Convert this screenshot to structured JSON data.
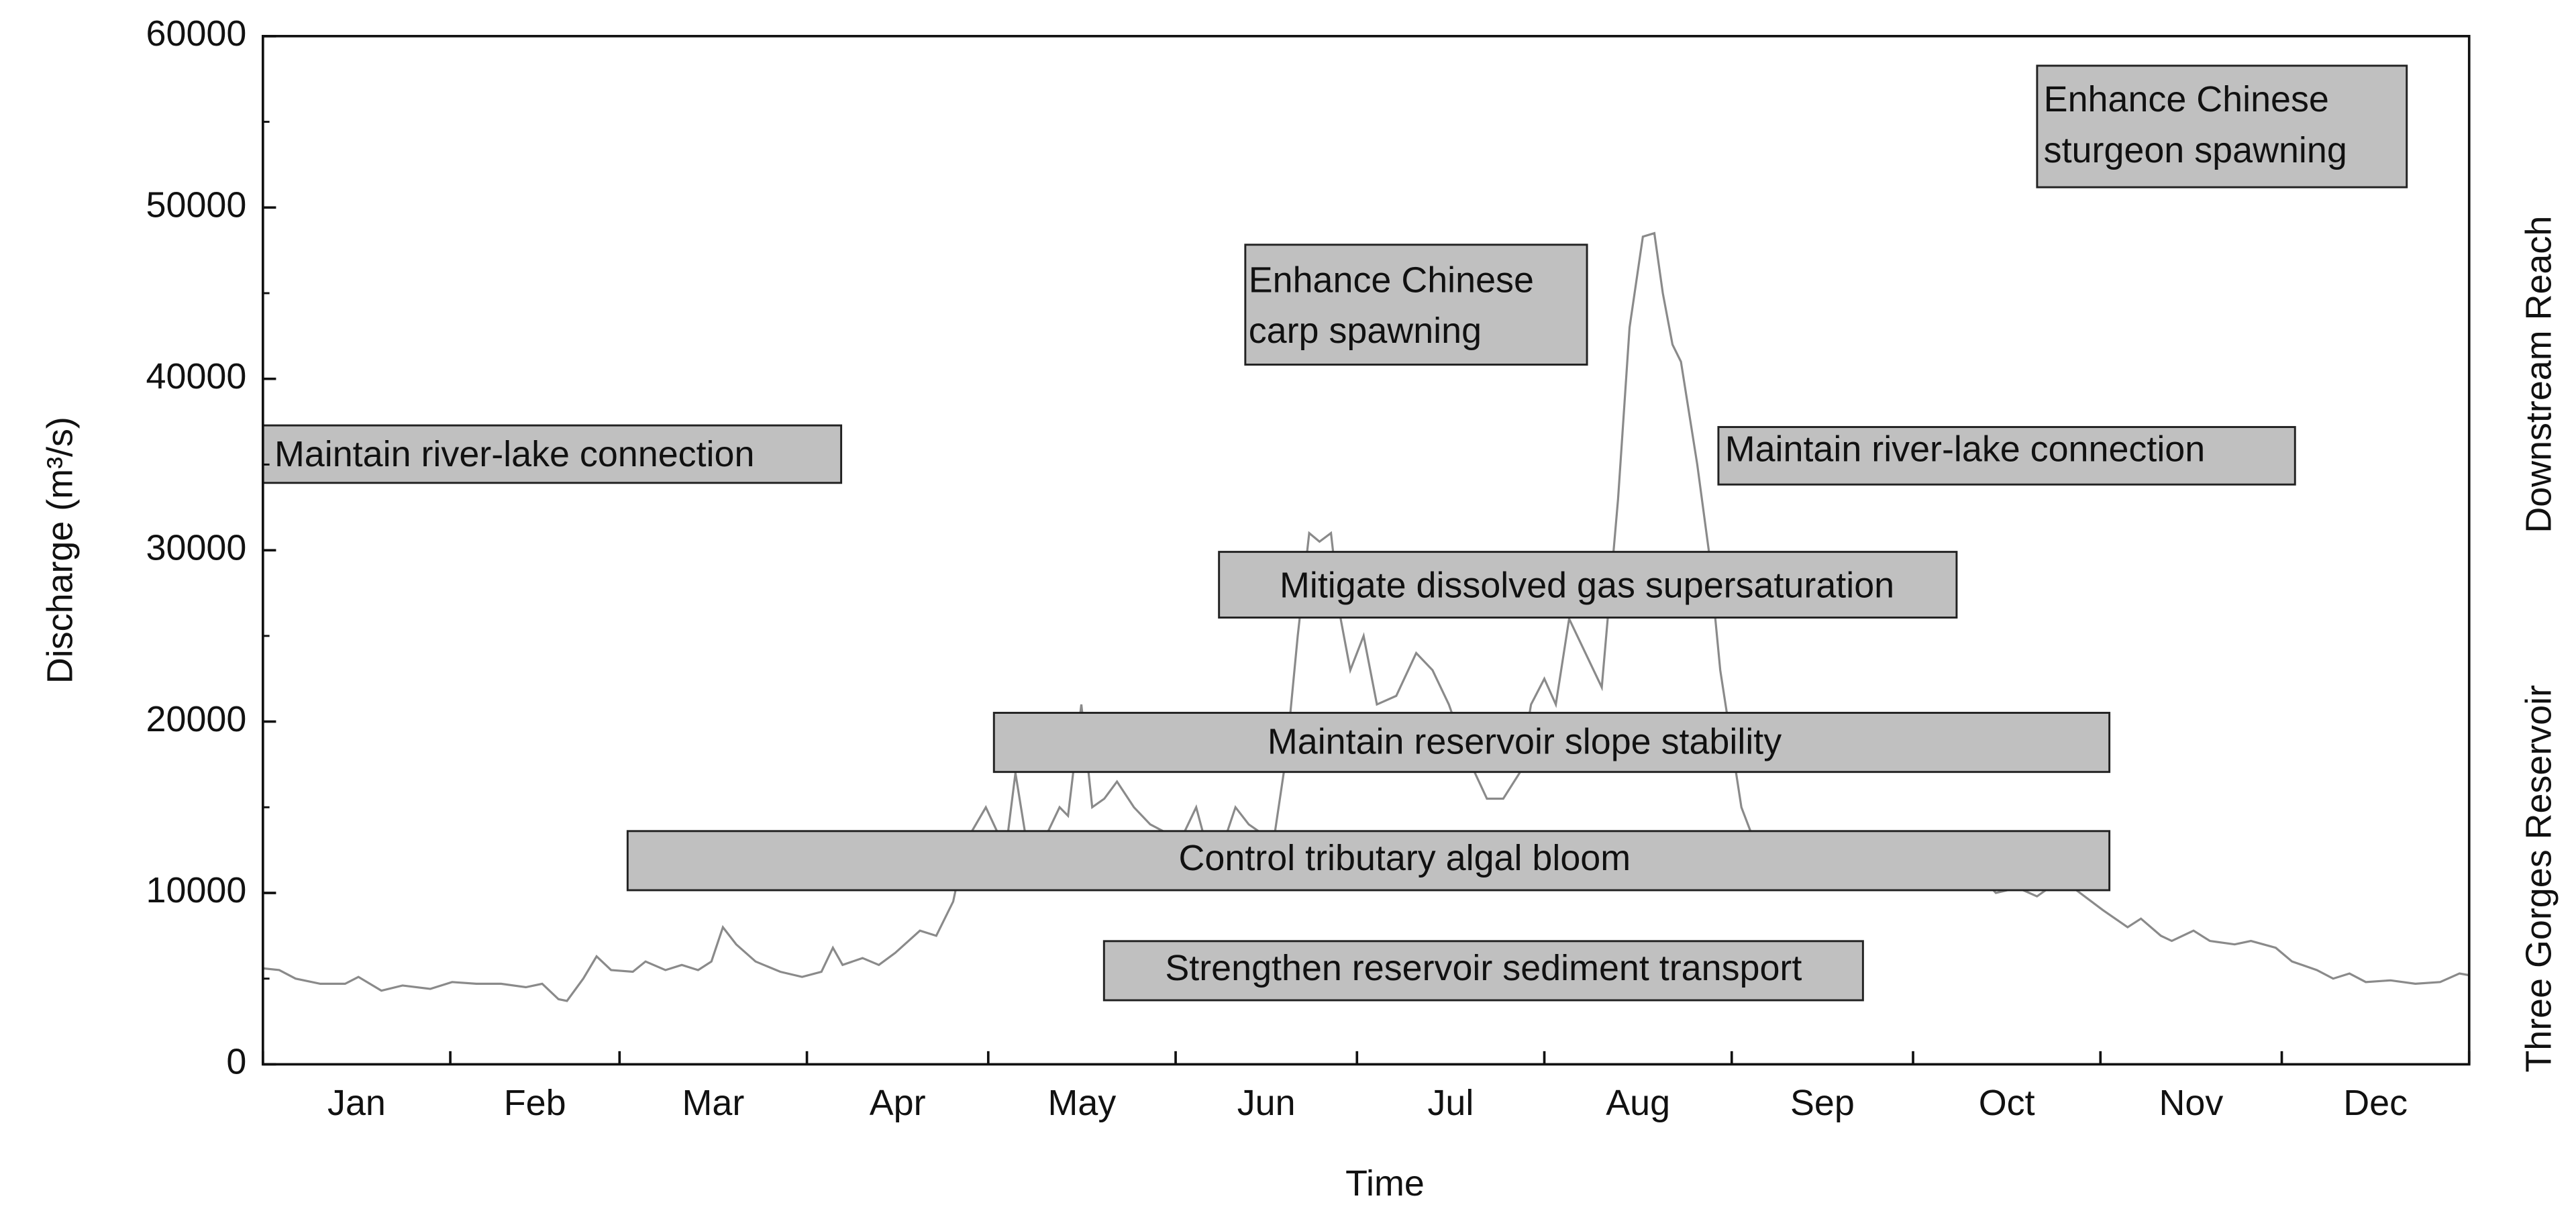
{
  "chart_data": {
    "type": "line",
    "x_label": "Time",
    "y_label": "Discharge (m³/s)",
    "right_labels": [
      "Downstream Reach",
      "Three Gorges Reservoir"
    ],
    "categories": [
      "Jan",
      "Feb",
      "Mar",
      "Apr",
      "May",
      "Jun",
      "Jul",
      "Aug",
      "Sep",
      "Oct",
      "Nov",
      "Dec"
    ],
    "xlim": [
      0,
      365
    ],
    "xticks": [
      0,
      31,
      59,
      90,
      120,
      151,
      181,
      212,
      243,
      273,
      304,
      334,
      365
    ],
    "ylim": [
      0,
      60000
    ],
    "yticks": [
      0,
      10000,
      20000,
      30000,
      40000,
      50000,
      60000
    ],
    "yminorticks": [
      5000,
      15000,
      25000,
      35000,
      45000,
      55000
    ],
    "color": "#8a8a8a",
    "x": [
      0,
      2.7,
      5.4,
      9.5,
      13.6,
      15.8,
      19.6,
      23.1,
      27.7,
      31.3,
      35.3,
      39.4,
      43.5,
      46.2,
      48.9,
      50.3,
      53.0,
      55.2,
      57.6,
      61.2,
      63.3,
      66.6,
      69.3,
      72.0,
      74.2,
      76.1,
      78.3,
      81.5,
      85.6,
      89.2,
      92.4,
      94.3,
      95.9,
      99.2,
      101.9,
      104.6,
      108.7,
      111.4,
      114.2,
      116.3,
      119.6,
      122.9,
      124.5,
      126.1,
      129.1,
      131.8,
      133.2,
      135.4,
      137.2,
      139.2,
      141.3,
      144.1,
      146.8,
      149.5,
      151.7,
      154.4,
      156.3,
      159.0,
      160.9,
      163.1,
      167.2,
      169.3,
      171.2,
      173.1,
      174.8,
      176.7,
      178.3,
      179.9,
      182.1,
      184.3,
      187.5,
      190.8,
      193.5,
      196.2,
      199.2,
      202.5,
      205.2,
      207.9,
      209.8,
      212.0,
      213.9,
      216.1,
      218.8,
      221.5,
      224.2,
      226.1,
      228.3,
      230.2,
      231.6,
      233.2,
      234.6,
      237.3,
      239.2,
      241.1,
      244.6,
      247.3,
      252.8,
      258.2,
      263.6,
      269.1,
      274.5,
      280.0,
      285.4,
      286.7,
      290.3,
      293.5,
      296.3,
      299.5,
      304.4,
      308.5,
      310.7,
      314.0,
      315.8,
      319.4,
      322.1,
      326.2,
      328.9,
      333.0,
      335.7,
      339.8,
      342.5,
      345.2,
      347.9,
      352.0,
      356.1,
      360.2,
      363.4,
      365
    ],
    "values": [
      5600,
      5500,
      5000,
      4700,
      4700,
      5100,
      4300,
      4600,
      4400,
      4800,
      4700,
      4700,
      4500,
      4700,
      3800,
      3700,
      5000,
      6300,
      5500,
      5400,
      6000,
      5500,
      5800,
      5500,
      6000,
      8000,
      7000,
      6000,
      5400,
      5100,
      5400,
      6800,
      5800,
      6200,
      5800,
      6500,
      7800,
      7500,
      9500,
      13000,
      15000,
      12500,
      17000,
      13500,
      13000,
      15000,
      14500,
      21000,
      15000,
      15500,
      16500,
      15000,
      14000,
      13500,
      13000,
      15000,
      12500,
      13000,
      15000,
      14000,
      13000,
      18000,
      25000,
      31000,
      30500,
      31000,
      26000,
      23000,
      25000,
      21000,
      21500,
      24000,
      23000,
      21000,
      18000,
      15500,
      15500,
      17000,
      21000,
      22500,
      21000,
      26000,
      24000,
      22000,
      33000,
      43000,
      48300,
      48500,
      45000,
      42000,
      41000,
      35000,
      30000,
      23000,
      15000,
      12500,
      12000,
      11500,
      11000,
      11000,
      10800,
      10500,
      10500,
      10000,
      10300,
      9800,
      10500,
      10300,
      9000,
      8000,
      8500,
      7500,
      7200,
      7800,
      7200,
      7000,
      7200,
      6800,
      6000,
      5500,
      5000,
      5300,
      4800,
      4900,
      4700,
      4800,
      5300,
      5200
    ],
    "annotations": [
      {
        "lines": [
          "Maintain river-lake connection"
        ]
      },
      {
        "lines": [
          "Enhance Chinese",
          "carp spawning"
        ]
      },
      {
        "lines": [
          "Enhance Chinese",
          "sturgeon spawning"
        ]
      },
      {
        "lines": [
          "Maintain river-lake connection"
        ]
      },
      {
        "lines": [
          "Mitigate dissolved gas supersaturation"
        ]
      },
      {
        "lines": [
          "Maintain reservoir slope stability"
        ]
      },
      {
        "lines": [
          "Control tributary algal bloom"
        ]
      },
      {
        "lines": [
          "Strengthen reservoir sediment transport"
        ]
      }
    ]
  }
}
